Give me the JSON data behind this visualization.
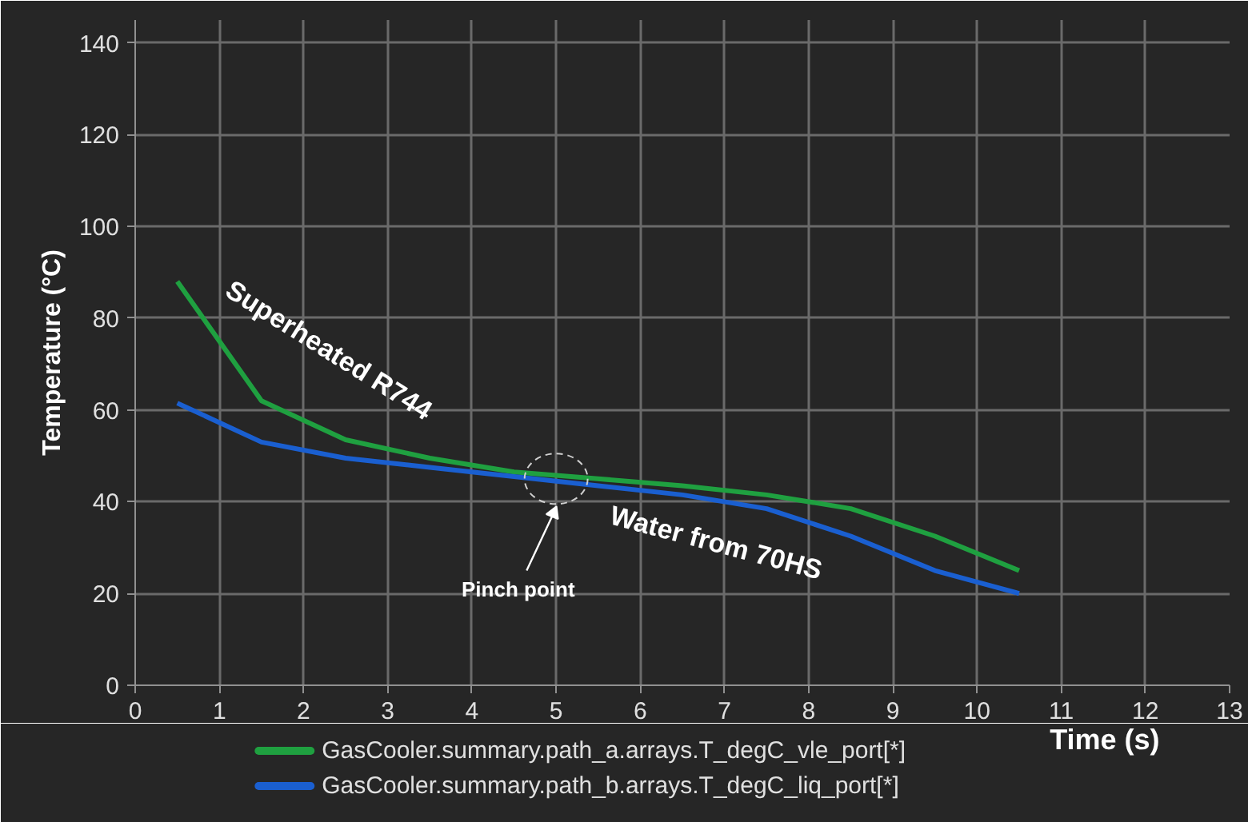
{
  "chart_data": {
    "type": "line",
    "xlabel": "Time (s)",
    "ylabel": "Temperature (°C)",
    "x": [
      0.5,
      1.5,
      2.5,
      3.5,
      4.5,
      5.5,
      6.5,
      7.5,
      8.5,
      9.5,
      10.5
    ],
    "series": [
      {
        "name": "GasCooler.summary.path_a.arrays.T_degC_vle_port[*]",
        "color": "#1fa040",
        "values": [
          88,
          62,
          53.5,
          49.5,
          46.5,
          45,
          43.5,
          41.5,
          38.5,
          32.5,
          25
        ]
      },
      {
        "name": "GasCooler.summary.path_b.arrays.T_degC_liq_port[*]",
        "color": "#1a5fd0",
        "values": [
          61.5,
          53,
          49.5,
          47.5,
          45.5,
          43.5,
          41.5,
          38.5,
          32.5,
          25,
          20
        ]
      }
    ],
    "annotations": [
      "Superheated R744",
      "Water from 70HS",
      "Pinch point"
    ],
    "xlim": [
      0,
      13
    ],
    "xticks": [
      0,
      1,
      2,
      3,
      4,
      5,
      6,
      7,
      8,
      9,
      10,
      11,
      12,
      13
    ],
    "ylim": [
      0,
      145
    ],
    "yticks": [
      0,
      20,
      40,
      60,
      80,
      100,
      120,
      140
    ],
    "grid": true,
    "legend": "bottom",
    "marker": "none",
    "line_style": "solid"
  }
}
